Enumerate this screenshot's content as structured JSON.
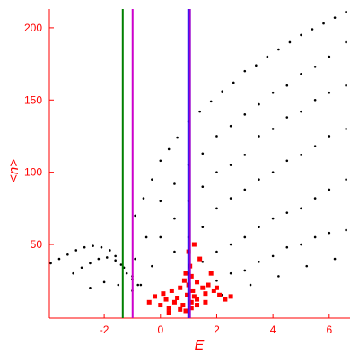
{
  "chart_data": {
    "type": "scatter",
    "xlabel": "E",
    "ylabel": "<n>",
    "xlim": [
      -3.95,
      6.74
    ],
    "ylim": [
      -1,
      213
    ],
    "xticks": [
      -2,
      0,
      2,
      4,
      6
    ],
    "yticks": [
      50,
      100,
      150,
      200
    ],
    "axis_color": "#ff0000",
    "vlines": [
      {
        "x": -1.34,
        "color": "#008000"
      },
      {
        "x": -0.99,
        "color": "#cc00cc"
      },
      {
        "x": 0.99,
        "color": "#0000ff"
      },
      {
        "x": 1.05,
        "color": "#9900cc"
      }
    ],
    "series": [
      {
        "name": "black",
        "color": "#000000",
        "marker": "dot",
        "x": [
          -0.9,
          -0.6,
          -0.3,
          0,
          0.3,
          0.6,
          1,
          1.4,
          1.8,
          2.2,
          2.6,
          3,
          3.4,
          3.8,
          4.2,
          4.6,
          5,
          5.4,
          5.8,
          6.2,
          6.6,
          -0.9,
          -0.5,
          0,
          0.5,
          1,
          1.5,
          2,
          2.5,
          3,
          3.5,
          4,
          4.5,
          5,
          5.5,
          6,
          6.6,
          -0.3,
          0,
          0.5,
          1,
          1.5,
          2,
          2.5,
          3,
          3.5,
          4,
          4.5,
          5,
          5.5,
          6,
          6.6,
          0.5,
          1,
          1.5,
          2,
          2.5,
          3,
          3.5,
          4,
          4.5,
          5,
          5.5,
          6,
          6.6,
          1,
          1.5,
          2,
          2.5,
          3,
          3.5,
          4,
          4.5,
          5,
          5.5,
          6,
          6.6,
          1.5,
          2,
          2.5,
          3,
          3.5,
          4,
          4.5,
          5,
          5.5,
          6,
          6.6,
          2.2,
          3.2,
          4.2,
          5.2,
          6.2,
          -3.9,
          -3.6,
          -3.3,
          -3,
          -2.7,
          -2.4,
          -2.1,
          -1.8,
          -1.6,
          -1.4,
          -1.2,
          -1,
          -0.8,
          -3.1,
          -2.8,
          -2.5,
          -2.2,
          -1.9,
          -1.6,
          -1.3,
          -1,
          -0.7,
          -2.5,
          -2,
          -1.5,
          -1
        ],
        "values": [
          70,
          82,
          95,
          108,
          116,
          124,
          135,
          142,
          149,
          156,
          162,
          170,
          174,
          180,
          185,
          190,
          195,
          199,
          203,
          207,
          211,
          40,
          55,
          80,
          92,
          105,
          113,
          125,
          132,
          140,
          147,
          155,
          160,
          168,
          173,
          180,
          190,
          35,
          55,
          68,
          80,
          90,
          100,
          105,
          112,
          125,
          130,
          138,
          142,
          150,
          155,
          160,
          45,
          55,
          62,
          75,
          82,
          88,
          95,
          100,
          108,
          112,
          118,
          125,
          130,
          30,
          38,
          45,
          50,
          55,
          62,
          68,
          72,
          75,
          82,
          88,
          95,
          20,
          25,
          30,
          32,
          38,
          42,
          48,
          50,
          55,
          58,
          60,
          15,
          22,
          28,
          35,
          40,
          37,
          40,
          43,
          46,
          48,
          49,
          48,
          46,
          42,
          36,
          30,
          26,
          22,
          30,
          34,
          37,
          40,
          41,
          39,
          34,
          28,
          22,
          20,
          24,
          22,
          18
        ]
      },
      {
        "name": "red",
        "color": "#ff0000",
        "marker": "square",
        "x": [
          -0.4,
          -0.2,
          0,
          0.1,
          0.2,
          0.3,
          0.4,
          0.5,
          0.6,
          0.7,
          0.8,
          0.85,
          0.9,
          0.95,
          1,
          1,
          1.05,
          1.1,
          1.1,
          1.15,
          1.2,
          1.2,
          1.3,
          1.3,
          1.4,
          1.5,
          1.6,
          1.7,
          1.8,
          1.9,
          2,
          2.1,
          2.3,
          2.5,
          0.7,
          0.9,
          1.1,
          1.3,
          1.6,
          0.3
        ],
        "values": [
          10,
          14,
          8,
          16,
          12,
          6,
          18,
          10,
          13,
          20,
          8,
          25,
          30,
          15,
          45,
          22,
          35,
          10,
          28,
          18,
          50,
          14,
          24,
          12,
          40,
          20,
          16,
          22,
          30,
          18,
          20,
          15,
          12,
          14,
          5,
          4,
          6,
          8,
          10,
          3
        ]
      }
    ]
  }
}
